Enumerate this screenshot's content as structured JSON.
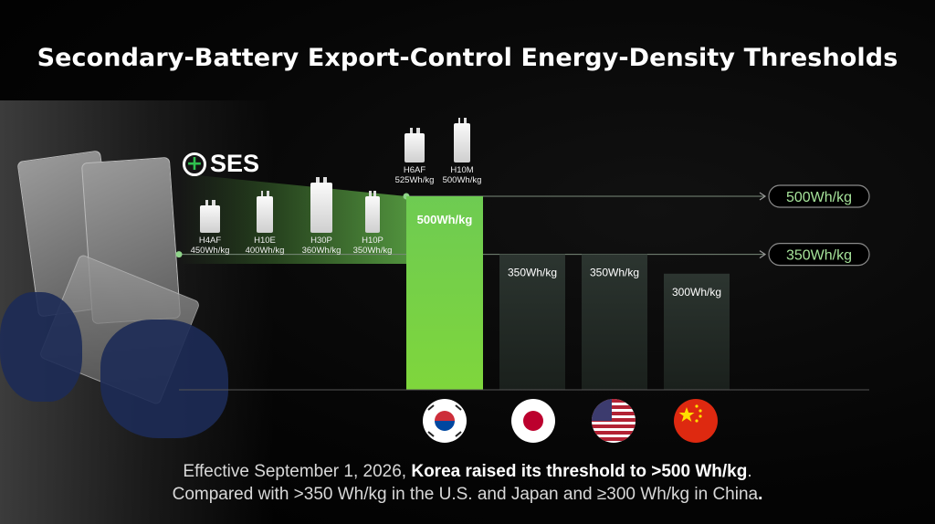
{
  "title": "Secondary-Battery Export-Control Energy-Density Thresholds",
  "logo": {
    "text": "SES",
    "icon": "plus-circle-icon"
  },
  "products": [
    {
      "name": "H4AF",
      "density": "450Wh/kg"
    },
    {
      "name": "H10E",
      "density": "400Wh/kg"
    },
    {
      "name": "H30P",
      "density": "360Wh/kg"
    },
    {
      "name": "H10P",
      "density": "350Wh/kg"
    },
    {
      "name": "H6AF",
      "density": "525Wh/kg"
    },
    {
      "name": "H10M",
      "density": "500Wh/kg"
    }
  ],
  "chart_data": {
    "type": "bar",
    "title": "Secondary-Battery Export-Control Energy-Density Thresholds",
    "xlabel": "",
    "ylabel": "",
    "categories": [
      "Korea",
      "Japan",
      "U.S.",
      "China"
    ],
    "values": [
      500,
      350,
      350,
      300
    ],
    "unit": "Wh/kg",
    "ylim": [
      0,
      500
    ],
    "data_labels": [
      "500Wh/kg",
      "350Wh/kg",
      "350Wh/kg",
      "300Wh/kg"
    ],
    "threshold_lines": [
      {
        "value": 500,
        "label": "500Wh/kg"
      },
      {
        "value": 350,
        "label": "350Wh/kg"
      }
    ],
    "grid": false,
    "legend": "none",
    "colors": {
      "highlight": "#6ecb52",
      "bar": "#2c3530",
      "line": "#8fd48a"
    }
  },
  "flags": [
    {
      "country": "Korea",
      "icon": "south-korea-flag-icon"
    },
    {
      "country": "Japan",
      "icon": "japan-flag-icon"
    },
    {
      "country": "U.S.",
      "icon": "usa-flag-icon"
    },
    {
      "country": "China",
      "icon": "china-flag-icon"
    }
  ],
  "caption": {
    "line1_prefix": "Effective September 1, 2026, ",
    "line1_bold": "Korea raised its threshold to >500 Wh/kg",
    "line1_suffix": ".",
    "line2_prefix": "Compared with >350 Wh/kg in the U.S. and Japan and ≥300 Wh/kg in China",
    "line2_bold": "."
  }
}
